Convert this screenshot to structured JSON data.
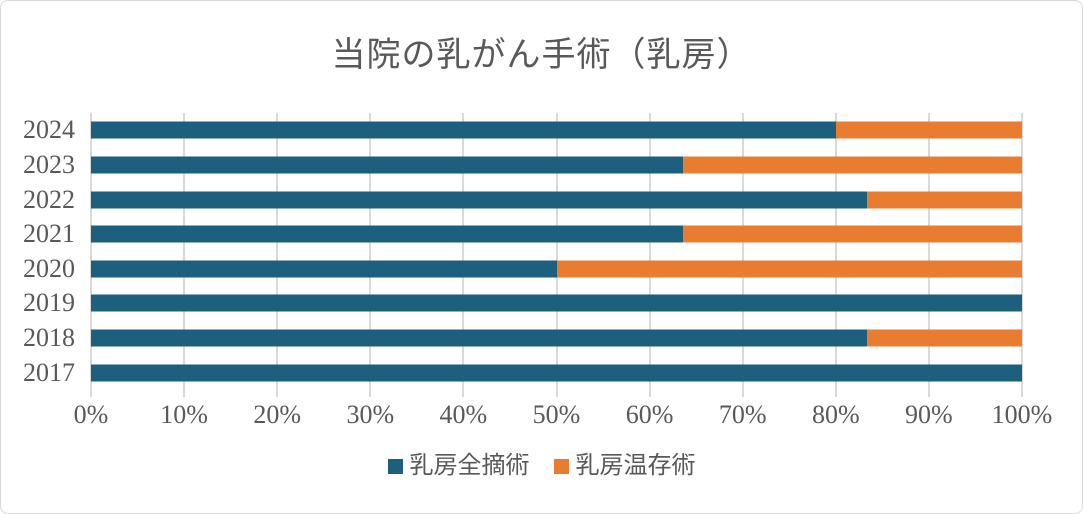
{
  "title": "当院の乳がん手術（乳房）",
  "colors": {
    "series_mastectomy": "#1F5F7E",
    "series_conserving": "#E87D31",
    "text": "#595959",
    "gridline": "#D9D9D9",
    "border": "#D9D9D9",
    "background": "#FFFFFF"
  },
  "chart_data": {
    "type": "bar",
    "subtype": "100-percent-stacked-horizontal",
    "title": "当院の乳がん手術（乳房）",
    "categories": [
      "2024",
      "2023",
      "2022",
      "2021",
      "2020",
      "2019",
      "2018",
      "2017"
    ],
    "series": [
      {
        "name": "乳房全摘術",
        "key": "mastectomy",
        "color": "#1F5F7E",
        "values": [
          80.0,
          63.6,
          83.3,
          63.6,
          50.0,
          100.0,
          83.3,
          100.0
        ]
      },
      {
        "name": "乳房温存術",
        "key": "breast-conserving",
        "color": "#E87D31",
        "values": [
          20.0,
          36.4,
          16.7,
          36.4,
          50.0,
          0.0,
          16.7,
          0.0
        ]
      }
    ],
    "x_axis": {
      "min": 0,
      "max": 100,
      "tick_step": 10,
      "tick_labels": [
        "0%",
        "10%",
        "20%",
        "30%",
        "40%",
        "50%",
        "60%",
        "70%",
        "80%",
        "90%",
        "100%"
      ]
    },
    "y_axis": {
      "order": "top-to-bottom"
    },
    "grid": true,
    "legend": {
      "position": "bottom",
      "entries": [
        "乳房全摘術",
        "乳房温存術"
      ]
    }
  }
}
